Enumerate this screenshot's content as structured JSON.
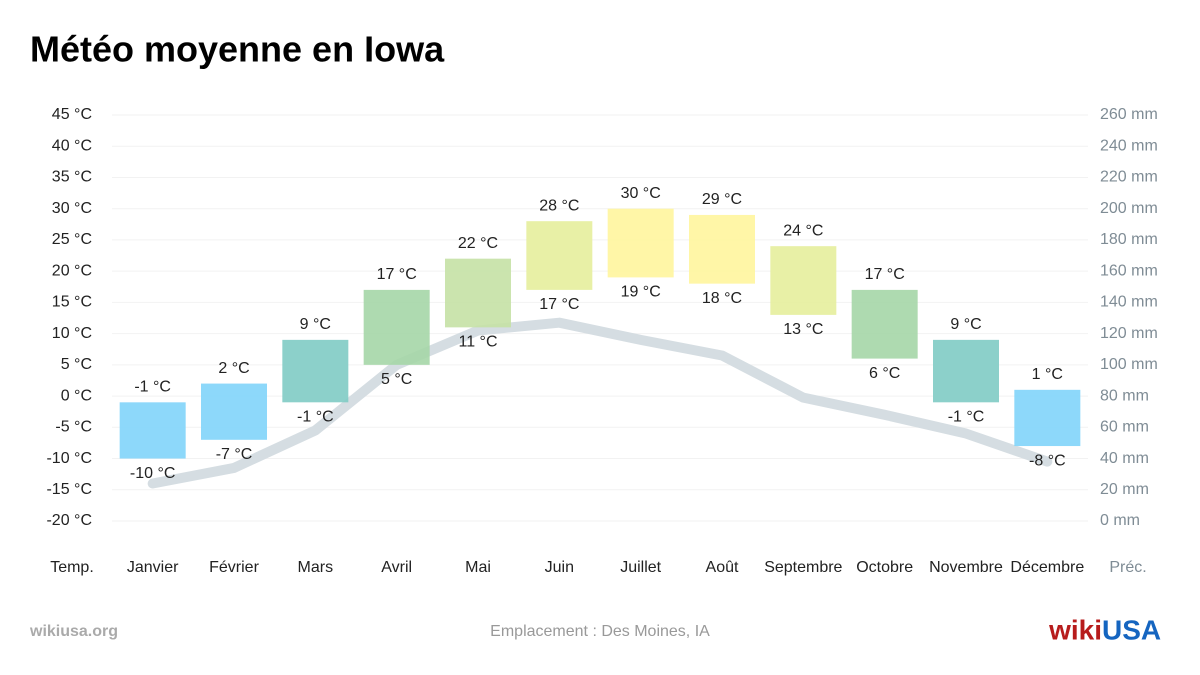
{
  "chart_data": {
    "type": "range-bar",
    "title": "Météo moyenne en Iowa",
    "y_axis_label": "Temp.",
    "y2_axis_label": "Préc.",
    "categories": [
      "Janvier",
      "Février",
      "Mars",
      "Avril",
      "Mai",
      "Juin",
      "Juillet",
      "Août",
      "Septembre",
      "Octobre",
      "Novembre",
      "Décembre"
    ],
    "series": [
      {
        "type": "range-bar",
        "colors": [
          "#81d4fa",
          "#81d4fa",
          "#80cbc4",
          "#a5d6a7",
          "#c5e1a5",
          "#e6ee9c",
          "#fff59d",
          "#fff59d",
          "#e6ee9c",
          "#a5d6a7",
          "#80cbc4",
          "#81d4fa"
        ],
        "max": [
          -1,
          2,
          9,
          17,
          22,
          28,
          30,
          29,
          24,
          17,
          9,
          1
        ],
        "max_value_labels": [
          "-1 °C",
          "2 °C",
          "9 °C",
          "17 °C",
          "22 °C",
          "28 °C",
          "30 °C",
          "29 °C",
          "24 °C",
          "17 °C",
          "9 °C",
          "1 °C"
        ],
        "min": [
          -10,
          -7,
          -1,
          5,
          11,
          17,
          19,
          18,
          13,
          6,
          -1,
          -8
        ],
        "min_value_labels": [
          "-10 °C",
          "-7 °C",
          "-1 °C",
          "5 °C",
          "11 °C",
          "17 °C",
          "19 °C",
          "18 °C",
          "13 °C",
          "6 °C",
          "-1 °C",
          "-8 °C"
        ]
      },
      {
        "type": "line",
        "axis": "y2",
        "color": "#d5dde2",
        "values": [
          24,
          34,
          58,
          100,
          122,
          127,
          116,
          106,
          79,
          68,
          56,
          38
        ]
      }
    ],
    "ylim": [
      -20,
      45
    ],
    "yticks": [
      {
        "value": -20,
        "label": "-20 °C"
      },
      {
        "value": -15,
        "label": "-15 °C"
      },
      {
        "value": -10,
        "label": "-10 °C"
      },
      {
        "value": -5,
        "label": "-5 °C"
      },
      {
        "value": 0,
        "label": "0 °C"
      },
      {
        "value": 5,
        "label": "5 °C"
      },
      {
        "value": 10,
        "label": "10 °C"
      },
      {
        "value": 15,
        "label": "15 °C"
      },
      {
        "value": 20,
        "label": "20 °C"
      },
      {
        "value": 25,
        "label": "25 °C"
      },
      {
        "value": 30,
        "label": "30 °C"
      },
      {
        "value": 35,
        "label": "35 °C"
      },
      {
        "value": 40,
        "label": "40 °C"
      },
      {
        "value": 45,
        "label": "45 °C"
      }
    ],
    "y2lim": [
      0,
      260
    ],
    "y2ticks": [
      {
        "value": 0,
        "label": "0 mm"
      },
      {
        "value": 20,
        "label": "20 mm"
      },
      {
        "value": 40,
        "label": "40 mm"
      },
      {
        "value": 60,
        "label": "60 mm"
      },
      {
        "value": 80,
        "label": "80 mm"
      },
      {
        "value": 100,
        "label": "100 mm"
      },
      {
        "value": 120,
        "label": "120 mm"
      },
      {
        "value": 140,
        "label": "140 mm"
      },
      {
        "value": 160,
        "label": "160 mm"
      },
      {
        "value": 180,
        "label": "180 mm"
      },
      {
        "value": 200,
        "label": "200 mm"
      },
      {
        "value": 220,
        "label": "220 mm"
      },
      {
        "value": 240,
        "label": "240 mm"
      },
      {
        "value": 260,
        "label": "260 mm"
      }
    ],
    "grid": true
  },
  "footer": {
    "source": "wikiusa.org",
    "location": "Emplacement : Des Moines, IA",
    "logo_wiki": "wiki",
    "logo_usa": "USA"
  }
}
